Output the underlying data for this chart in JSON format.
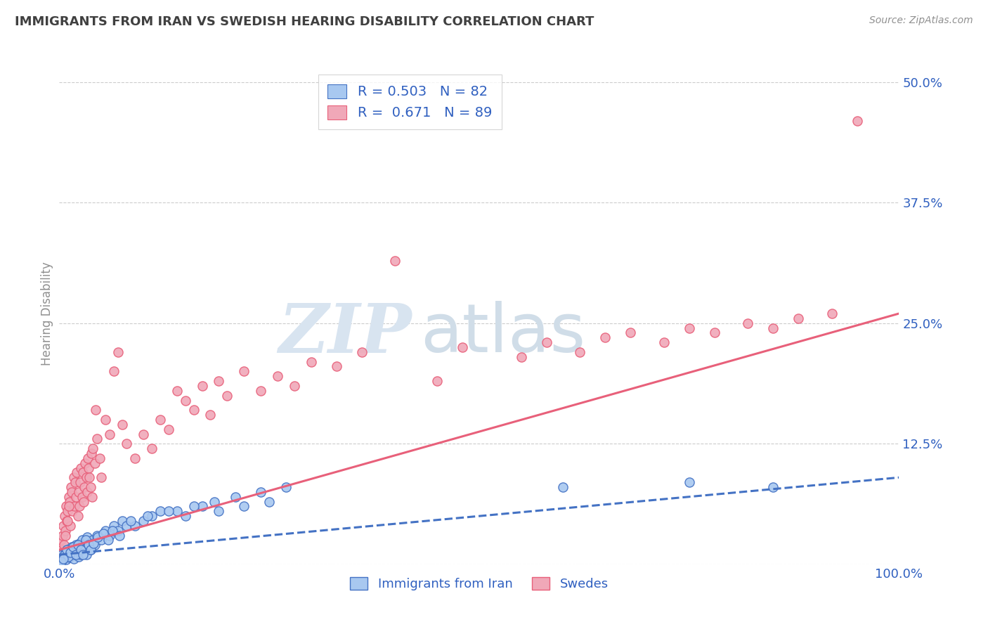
{
  "title": "IMMIGRANTS FROM IRAN VS SWEDISH HEARING DISABILITY CORRELATION CHART",
  "source": "Source: ZipAtlas.com",
  "ylabel": "Hearing Disability",
  "legend_blue_label": "Immigrants from Iran",
  "legend_pink_label": "Swedes",
  "xlim": [
    0,
    100
  ],
  "ylim": [
    0,
    52
  ],
  "yticks": [
    0,
    12.5,
    25.0,
    37.5,
    50.0
  ],
  "ytick_labels": [
    "",
    "12.5%",
    "25.0%",
    "37.5%",
    "50.0%"
  ],
  "xtick_labels": [
    "0.0%",
    "100.0%"
  ],
  "blue_color": "#A8C8F0",
  "pink_color": "#F0A8B8",
  "trend_blue_color": "#4472C4",
  "trend_pink_color": "#E8607A",
  "text_color": "#3060C0",
  "title_color": "#404040",
  "grid_color": "#CCCCCC",
  "background_color": "#FFFFFF",
  "blue_trend": [
    0,
    100,
    1.0,
    9.0
  ],
  "pink_trend": [
    0,
    100,
    1.5,
    26.0
  ],
  "blue_scatter_x": [
    0.3,
    0.5,
    0.7,
    0.8,
    1.0,
    1.1,
    1.2,
    1.3,
    1.4,
    1.5,
    1.6,
    1.7,
    1.8,
    1.9,
    2.0,
    2.1,
    2.2,
    2.3,
    2.4,
    2.5,
    2.6,
    2.7,
    2.8,
    2.9,
    3.0,
    3.1,
    3.2,
    3.3,
    3.5,
    3.7,
    4.0,
    4.2,
    4.5,
    5.0,
    5.5,
    6.0,
    6.5,
    7.0,
    7.5,
    8.0,
    9.0,
    10.0,
    11.0,
    12.0,
    14.0,
    15.0,
    17.0,
    19.0,
    22.0,
    25.0,
    0.4,
    0.6,
    0.9,
    1.05,
    1.35,
    1.65,
    1.95,
    2.25,
    2.55,
    2.85,
    3.15,
    3.45,
    3.75,
    4.1,
    4.6,
    5.2,
    5.8,
    6.3,
    7.2,
    8.5,
    10.5,
    13.0,
    16.0,
    18.5,
    21.0,
    24.0,
    27.0,
    60.0,
    75.0,
    85.0,
    0.2,
    0.45
  ],
  "blue_scatter_y": [
    1.0,
    0.8,
    1.2,
    0.5,
    1.5,
    1.0,
    0.7,
    1.3,
    0.9,
    1.8,
    1.2,
    0.6,
    1.5,
    1.0,
    2.0,
    1.3,
    1.8,
    0.8,
    2.2,
    1.5,
    1.0,
    2.5,
    1.2,
    1.8,
    2.0,
    1.5,
    1.0,
    2.8,
    2.0,
    1.5,
    2.5,
    2.0,
    3.0,
    2.5,
    3.5,
    3.0,
    4.0,
    3.5,
    4.5,
    4.0,
    4.0,
    4.5,
    5.0,
    5.5,
    5.5,
    5.0,
    6.0,
    5.5,
    6.0,
    6.5,
    0.5,
    1.0,
    1.5,
    0.8,
    1.2,
    1.8,
    1.0,
    2.0,
    1.5,
    1.0,
    2.5,
    2.0,
    1.5,
    2.2,
    2.8,
    3.2,
    2.5,
    3.5,
    3.0,
    4.5,
    5.0,
    5.5,
    6.0,
    6.5,
    7.0,
    7.5,
    8.0,
    8.0,
    8.5,
    8.0,
    0.3,
    0.6
  ],
  "pink_scatter_x": [
    0.2,
    0.4,
    0.5,
    0.6,
    0.7,
    0.8,
    0.9,
    1.0,
    1.1,
    1.2,
    1.3,
    1.4,
    1.5,
    1.6,
    1.7,
    1.8,
    1.9,
    2.0,
    2.1,
    2.2,
    2.3,
    2.4,
    2.5,
    2.6,
    2.7,
    2.8,
    2.9,
    3.0,
    3.1,
    3.2,
    3.3,
    3.4,
    3.5,
    3.6,
    3.7,
    3.8,
    3.9,
    4.0,
    4.2,
    4.5,
    4.8,
    5.0,
    5.5,
    6.0,
    6.5,
    7.0,
    7.5,
    8.0,
    9.0,
    10.0,
    11.0,
    12.0,
    13.0,
    14.0,
    15.0,
    16.0,
    17.0,
    18.0,
    19.0,
    20.0,
    22.0,
    24.0,
    26.0,
    28.0,
    30.0,
    33.0,
    36.0,
    40.0,
    45.0,
    48.0,
    55.0,
    58.0,
    62.0,
    65.0,
    68.0,
    72.0,
    75.0,
    78.0,
    82.0,
    85.0,
    88.0,
    92.0,
    95.0,
    0.3,
    0.55,
    0.75,
    0.95,
    1.15,
    4.3
  ],
  "pink_scatter_y": [
    2.5,
    3.0,
    4.0,
    5.0,
    3.5,
    6.0,
    4.5,
    5.5,
    7.0,
    6.5,
    4.0,
    8.0,
    7.5,
    5.5,
    9.0,
    6.0,
    8.5,
    7.0,
    9.5,
    5.0,
    7.5,
    6.0,
    8.5,
    10.0,
    7.0,
    9.5,
    6.5,
    8.0,
    10.5,
    9.0,
    7.5,
    11.0,
    10.0,
    9.0,
    8.0,
    11.5,
    7.0,
    12.0,
    10.5,
    13.0,
    11.0,
    9.0,
    15.0,
    13.5,
    20.0,
    22.0,
    14.5,
    12.5,
    11.0,
    13.5,
    12.0,
    15.0,
    14.0,
    18.0,
    17.0,
    16.0,
    18.5,
    15.5,
    19.0,
    17.5,
    20.0,
    18.0,
    19.5,
    18.5,
    21.0,
    20.5,
    22.0,
    31.5,
    19.0,
    22.5,
    21.5,
    23.0,
    22.0,
    23.5,
    24.0,
    23.0,
    24.5,
    24.0,
    25.0,
    24.5,
    25.5,
    26.0,
    46.0,
    1.5,
    2.0,
    3.0,
    4.5,
    6.0,
    16.0
  ]
}
